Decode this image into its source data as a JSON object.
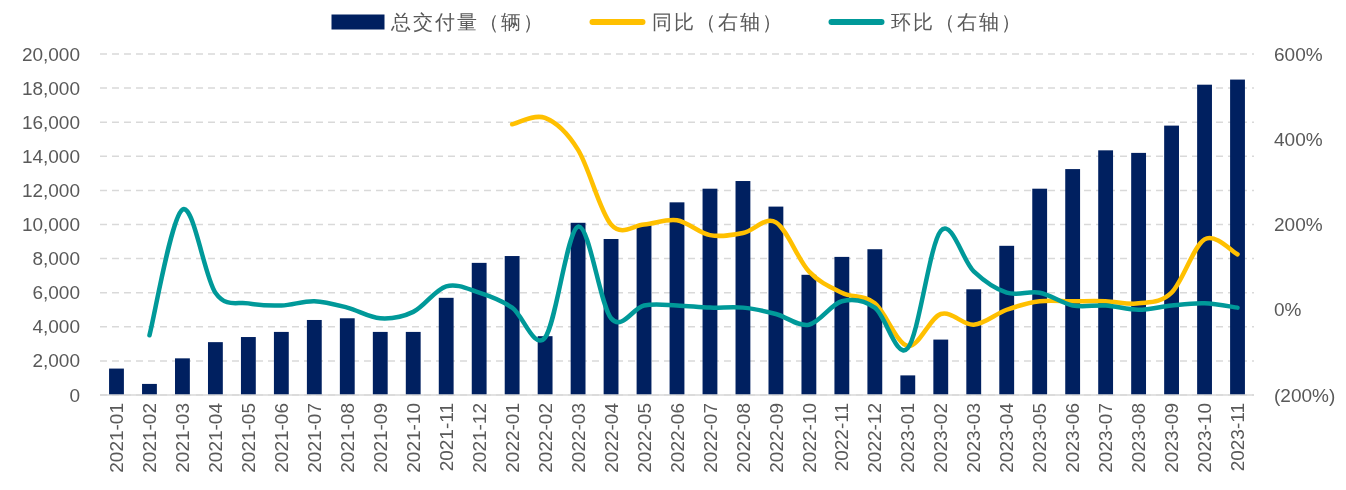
{
  "chart_data": {
    "type": "bar",
    "categories": [
      "2021-01",
      "2021-02",
      "2021-03",
      "2021-04",
      "2021-05",
      "2021-06",
      "2021-07",
      "2021-08",
      "2021-09",
      "2021-10",
      "2021-11",
      "2021-12",
      "2022-01",
      "2022-02",
      "2022-03",
      "2022-04",
      "2022-05",
      "2022-06",
      "2022-07",
      "2022-08",
      "2022-09",
      "2022-10",
      "2022-11",
      "2022-12",
      "2023-01",
      "2023-02",
      "2023-03",
      "2023-04",
      "2023-05",
      "2023-06",
      "2023-07",
      "2023-08",
      "2023-09",
      "2023-10",
      "2023-11"
    ],
    "series": [
      {
        "name": "总交付量（辆）",
        "color": "#002060",
        "values": [
          1550,
          650,
          2150,
          3100,
          3400,
          3700,
          4400,
          4500,
          3700,
          3700,
          5700,
          7750,
          8150,
          3450,
          10100,
          9150,
          10000,
          11300,
          12100,
          12550,
          11050,
          7050,
          8100,
          8550,
          1150,
          3250,
          6200,
          8750,
          12100,
          13250,
          14350,
          14200,
          15800,
          18200,
          18500
        ]
      },
      {
        "name": "同比（右轴）",
        "type": "line",
        "axis": "y2",
        "color": "#ffc000",
        "values": [
          null,
          null,
          null,
          null,
          null,
          null,
          null,
          null,
          null,
          null,
          null,
          null,
          435,
          450,
          375,
          200,
          200,
          210,
          175,
          180,
          205,
          90,
          40,
          15,
          -85,
          -10,
          -35,
          0,
          20,
          20,
          20,
          15,
          40,
          165,
          130
        ]
      },
      {
        "name": "环比（右轴）",
        "type": "line",
        "axis": "y2",
        "color": "#009999",
        "values": [
          null,
          -60,
          235,
          40,
          15,
          10,
          20,
          5,
          -20,
          -5,
          55,
          40,
          5,
          -65,
          195,
          -20,
          10,
          10,
          5,
          5,
          -10,
          -35,
          20,
          5,
          -90,
          185,
          90,
          40,
          40,
          10,
          10,
          0,
          10,
          15,
          5
        ]
      }
    ],
    "ylim": [
      0,
      20000
    ],
    "yticks": [
      0,
      {
        "value": 2000,
        "label": "2,000"
      },
      {
        "value": 4000,
        "label": "4,000"
      },
      {
        "value": 6000,
        "label": "6,000"
      },
      {
        "value": 8000,
        "label": "8,000"
      },
      {
        "value": 10000,
        "label": "10,000"
      },
      {
        "value": 12000,
        "label": "12,000"
      },
      {
        "value": 14000,
        "label": "14,000"
      },
      {
        "value": 16000,
        "label": "16,000"
      },
      {
        "value": 18000,
        "label": "18,000"
      },
      {
        "value": 20000,
        "label": "20,000"
      }
    ],
    "y2lim": [
      -200,
      600
    ],
    "y2ticks": [
      {
        "value": -200,
        "label": "(200%)"
      },
      {
        "value": 0,
        "label": "0%"
      },
      {
        "value": 200,
        "label": "200%"
      },
      {
        "value": 400,
        "label": "400%"
      },
      {
        "value": 600,
        "label": "600%"
      }
    ],
    "grid": "y",
    "legend": "top"
  }
}
